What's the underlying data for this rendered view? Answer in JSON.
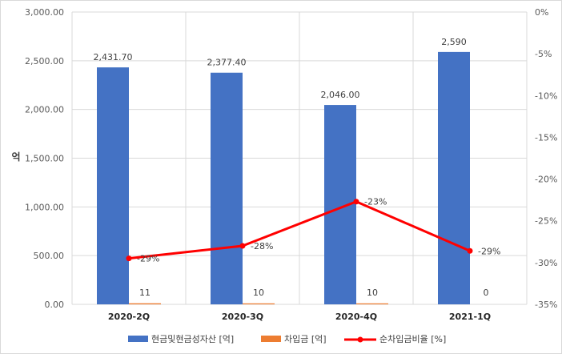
{
  "chart_data": {
    "type": "bar",
    "categories": [
      "2020-2Q",
      "2020-3Q",
      "2020-4Q",
      "2021-1Q"
    ],
    "ylabel": "억",
    "ylim": [
      0,
      3000
    ],
    "y_ticks": [
      "0.00",
      "500.00",
      "1,000.00",
      "1,500.00",
      "2,000.00",
      "2,500.00",
      "3,000.00"
    ],
    "y2lim": [
      -35,
      0
    ],
    "y2_ticks": [
      "-35%",
      "-30%",
      "-25%",
      "-20%",
      "-15%",
      "-10%",
      "-5%",
      "0%"
    ],
    "grid": true,
    "legend_position": "bottom",
    "series": [
      {
        "name": "현금및현금성자산 [억]",
        "type": "bar",
        "axis": "left",
        "color": "#4472C4",
        "values": [
          2431.7,
          2377.4,
          2046.0,
          2590
        ],
        "labels": [
          "2,431.70",
          "2,377.40",
          "2,046.00",
          "2,590"
        ]
      },
      {
        "name": "차입금 [억]",
        "type": "bar",
        "axis": "left",
        "color": "#ED7D31",
        "values": [
          11,
          10,
          10,
          0
        ],
        "labels": [
          "11",
          "10",
          "10",
          "0"
        ]
      },
      {
        "name": "순차입금비율 [%]",
        "type": "line",
        "axis": "right",
        "color": "#FF0000",
        "values": [
          -29.5,
          -28,
          -22.7,
          -28.6
        ],
        "labels": [
          "-29%",
          "-28%",
          "-23%",
          "-29%"
        ]
      }
    ]
  }
}
